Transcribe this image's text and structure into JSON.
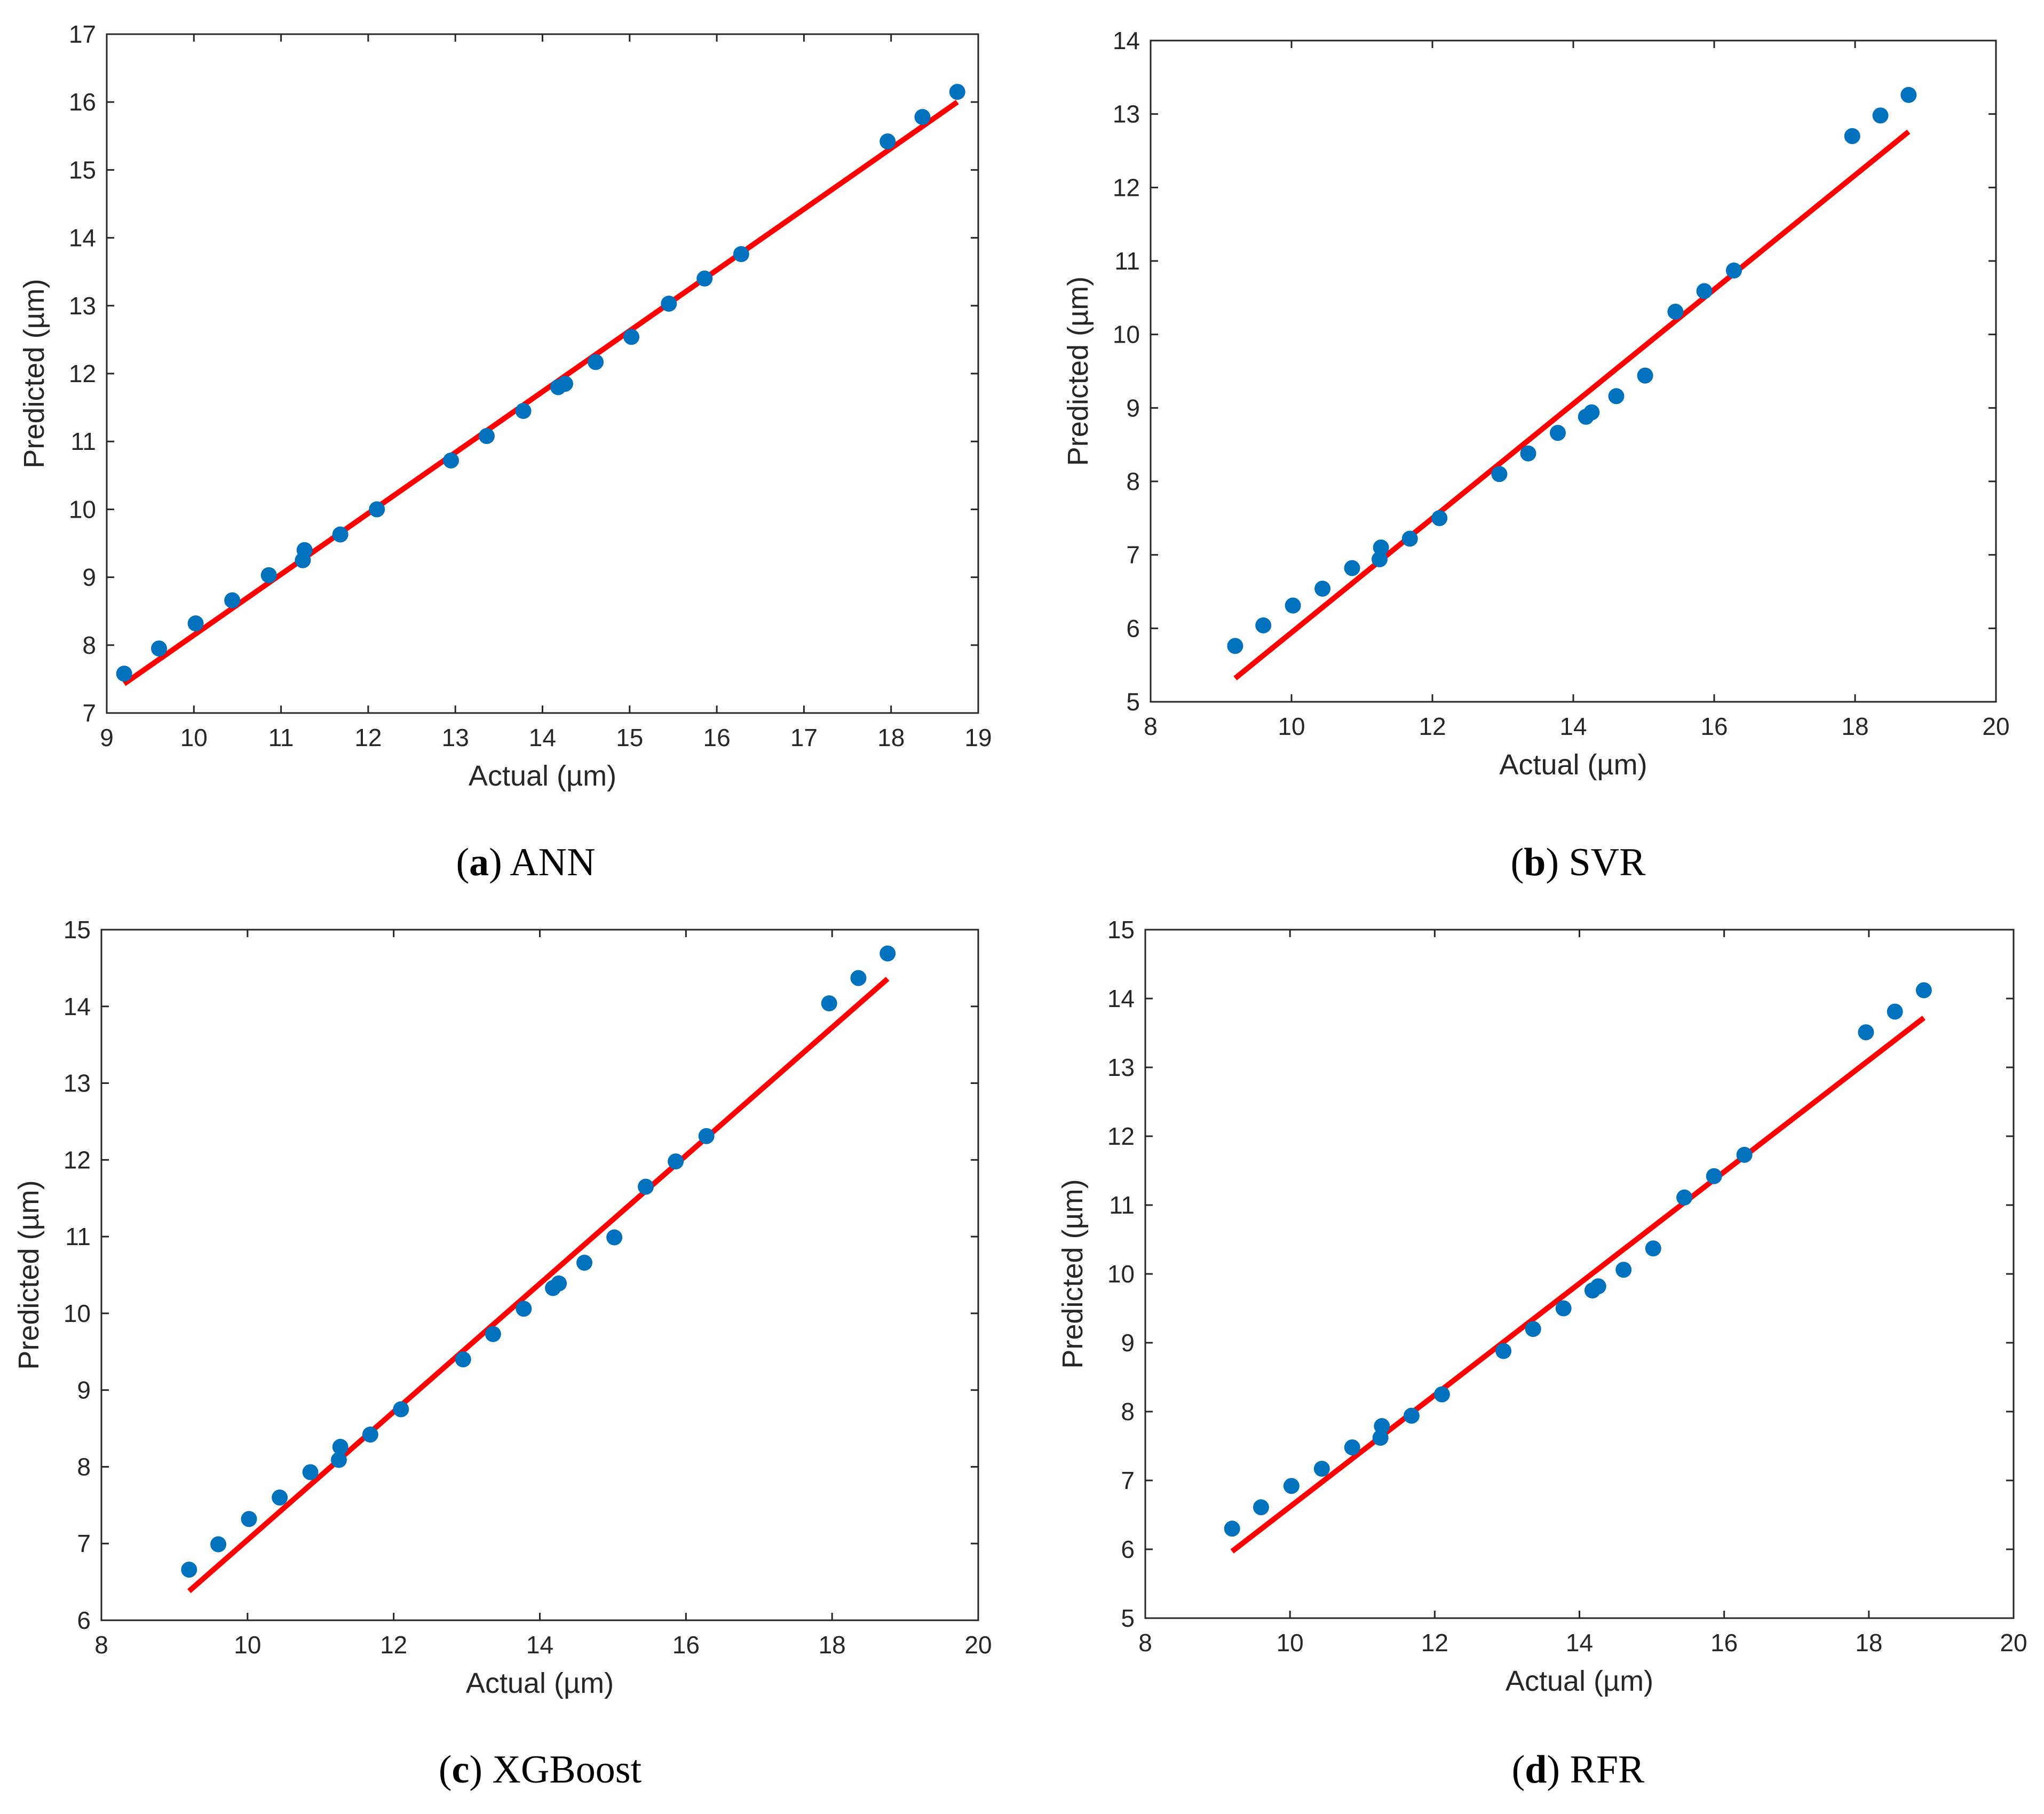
{
  "colors": {
    "points": "#0072BD",
    "fit": "#FF0000",
    "axis": "#262626"
  },
  "chart_data": [
    {
      "id": "a",
      "type": "scatter",
      "caption_tag": "(a)",
      "caption_name": "ANN",
      "xlabel": "Actual (µm)",
      "ylabel": "Predicted (µm)",
      "xlim": [
        9,
        19
      ],
      "ylim": [
        7,
        17
      ],
      "xticks": [
        9,
        10,
        11,
        12,
        13,
        14,
        15,
        16,
        17,
        18,
        19
      ],
      "yticks": [
        7,
        8,
        9,
        10,
        11,
        12,
        13,
        14,
        15,
        16,
        17
      ],
      "points": [
        [
          9.2,
          7.58
        ],
        [
          9.6,
          7.95
        ],
        [
          10.02,
          8.32
        ],
        [
          10.44,
          8.66
        ],
        [
          10.86,
          9.03
        ],
        [
          11.25,
          9.25
        ],
        [
          11.27,
          9.4
        ],
        [
          11.68,
          9.63
        ],
        [
          12.1,
          10.0
        ],
        [
          12.95,
          10.72
        ],
        [
          13.36,
          11.08
        ],
        [
          13.78,
          11.45
        ],
        [
          14.18,
          11.8
        ],
        [
          14.26,
          11.85
        ],
        [
          14.61,
          12.17
        ],
        [
          15.02,
          12.54
        ],
        [
          15.45,
          13.03
        ],
        [
          15.86,
          13.4
        ],
        [
          16.28,
          13.76
        ],
        [
          17.96,
          15.42
        ],
        [
          18.36,
          15.78
        ],
        [
          18.76,
          16.15
        ]
      ],
      "series": [
        {
          "name": "Predicted",
          "kind": "points"
        },
        {
          "name": "Fit",
          "kind": "line"
        }
      ],
      "fit_line": [
        [
          9.2,
          7.43
        ],
        [
          18.76,
          16.0
        ]
      ]
    },
    {
      "id": "b",
      "type": "scatter",
      "caption_tag": "(b)",
      "caption_name": "SVR",
      "xlabel": "Actual (µm)",
      "ylabel": "Predicted (µm)",
      "xlim": [
        8,
        20
      ],
      "ylim": [
        5,
        14
      ],
      "xticks": [
        8,
        10,
        12,
        14,
        16,
        18,
        20
      ],
      "yticks": [
        5,
        6,
        7,
        8,
        9,
        10,
        11,
        12,
        13,
        14
      ],
      "points": [
        [
          9.2,
          5.76
        ],
        [
          9.6,
          6.04
        ],
        [
          10.02,
          6.31
        ],
        [
          10.44,
          6.54
        ],
        [
          10.86,
          6.82
        ],
        [
          11.25,
          6.94
        ],
        [
          11.27,
          7.1
        ],
        [
          11.68,
          7.22
        ],
        [
          12.1,
          7.5
        ],
        [
          12.95,
          8.1
        ],
        [
          13.36,
          8.38
        ],
        [
          13.78,
          8.66
        ],
        [
          14.18,
          8.88
        ],
        [
          14.26,
          8.94
        ],
        [
          14.61,
          9.16
        ],
        [
          15.02,
          9.44
        ],
        [
          15.45,
          10.31
        ],
        [
          15.86,
          10.59
        ],
        [
          16.28,
          10.87
        ],
        [
          17.96,
          12.7
        ],
        [
          18.36,
          12.98
        ],
        [
          18.76,
          13.26
        ]
      ],
      "series": [
        {
          "name": "Predicted",
          "kind": "points"
        },
        {
          "name": "Fit",
          "kind": "line"
        }
      ],
      "fit_line": [
        [
          9.2,
          5.32
        ],
        [
          18.76,
          12.76
        ]
      ]
    },
    {
      "id": "c",
      "type": "scatter",
      "caption_tag": "(c)",
      "caption_name": "XGBoost",
      "xlabel": "Actual (µm)",
      "ylabel": "Predicted (µm)",
      "xlim": [
        8,
        20
      ],
      "ylim": [
        6,
        15
      ],
      "xticks": [
        8,
        10,
        12,
        14,
        16,
        18,
        20
      ],
      "yticks": [
        6,
        7,
        8,
        9,
        10,
        11,
        12,
        13,
        14,
        15
      ],
      "points": [
        [
          9.2,
          6.66
        ],
        [
          9.6,
          6.99
        ],
        [
          10.02,
          7.32
        ],
        [
          10.44,
          7.6
        ],
        [
          10.86,
          7.93
        ],
        [
          11.25,
          8.09
        ],
        [
          11.27,
          8.26
        ],
        [
          11.68,
          8.42
        ],
        [
          12.1,
          8.75
        ],
        [
          12.95,
          9.4
        ],
        [
          13.36,
          9.73
        ],
        [
          13.78,
          10.06
        ],
        [
          14.18,
          10.33
        ],
        [
          14.26,
          10.39
        ],
        [
          14.61,
          10.66
        ],
        [
          15.02,
          10.99
        ],
        [
          15.45,
          11.65
        ],
        [
          15.86,
          11.98
        ],
        [
          16.28,
          12.31
        ],
        [
          17.96,
          14.04
        ],
        [
          18.36,
          14.37
        ],
        [
          18.76,
          14.69
        ]
      ],
      "series": [
        {
          "name": "Predicted",
          "kind": "points"
        },
        {
          "name": "Fit",
          "kind": "line"
        }
      ],
      "fit_line": [
        [
          9.2,
          6.38
        ],
        [
          18.76,
          14.36
        ]
      ]
    },
    {
      "id": "d",
      "type": "scatter",
      "caption_tag": "(d)",
      "caption_name": "RFR",
      "xlabel": "Actual (µm)",
      "ylabel": "Predicted (µm)",
      "xlim": [
        8,
        20
      ],
      "ylim": [
        5,
        15
      ],
      "xticks": [
        8,
        10,
        12,
        14,
        16,
        18,
        20
      ],
      "yticks": [
        5,
        6,
        7,
        8,
        9,
        10,
        11,
        12,
        13,
        14,
        15
      ],
      "points": [
        [
          9.2,
          6.3
        ],
        [
          9.6,
          6.61
        ],
        [
          10.02,
          6.92
        ],
        [
          10.44,
          7.17
        ],
        [
          10.86,
          7.48
        ],
        [
          11.25,
          7.62
        ],
        [
          11.27,
          7.79
        ],
        [
          11.68,
          7.94
        ],
        [
          12.1,
          8.25
        ],
        [
          12.95,
          8.88
        ],
        [
          13.36,
          9.2
        ],
        [
          13.78,
          9.5
        ],
        [
          14.18,
          9.76
        ],
        [
          14.26,
          9.82
        ],
        [
          14.61,
          10.06
        ],
        [
          15.02,
          10.37
        ],
        [
          15.45,
          11.11
        ],
        [
          15.86,
          11.42
        ],
        [
          16.28,
          11.73
        ],
        [
          17.96,
          13.51
        ],
        [
          18.36,
          13.81
        ],
        [
          18.76,
          14.12
        ]
      ],
      "series": [
        {
          "name": "Predicted",
          "kind": "points"
        },
        {
          "name": "Fit",
          "kind": "line"
        }
      ],
      "fit_line": [
        [
          9.2,
          5.97
        ],
        [
          18.76,
          13.72
        ]
      ]
    }
  ]
}
